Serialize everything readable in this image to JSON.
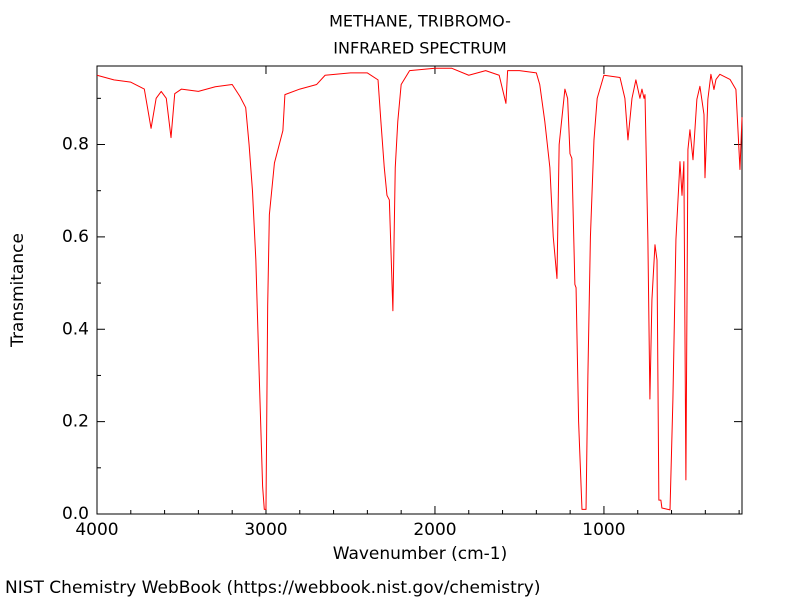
{
  "chart_data": {
    "type": "line",
    "title": "METHANE, TRIBROMO-",
    "subtitle": "INFRARED SPECTRUM",
    "x_label": "Wavenumber (cm-1)",
    "y_label": "Transmitance",
    "source": "NIST Chemistry WebBook (https://webbook.nist.gov/chemistry)",
    "color": "#ff0000",
    "xlim": [
      4000,
      183
    ],
    "ylim": [
      0,
      0.97
    ],
    "xticks": [
      4000,
      3000,
      2000,
      1000
    ],
    "xminorticks": [
      3800,
      3600,
      3400,
      3200,
      2800,
      2600,
      2400,
      2200,
      1800,
      1600,
      1400,
      1200,
      800,
      600,
      400,
      200
    ],
    "yticks": [
      {
        "value": 0,
        "label": "0.0"
      },
      0.2,
      0.4,
      0.6,
      0.8
    ],
    "yminorticks": [
      0.1,
      0.3,
      0.5,
      0.7,
      0.9
    ],
    "x": [
      4000,
      3900,
      3800,
      3720,
      3680,
      3650,
      3620,
      3590,
      3562,
      3540,
      3500,
      3400,
      3300,
      3200,
      3154,
      3120,
      3100,
      3080,
      3060,
      3040,
      3020,
      3010,
      3000,
      2990,
      2980,
      2950,
      2900,
      2888,
      2800,
      2700,
      2650,
      2500,
      2400,
      2337,
      2320,
      2300,
      2284,
      2270,
      2249,
      2235,
      2220,
      2200,
      2150,
      2000,
      1900,
      1800,
      1700,
      1620,
      1580,
      1570,
      1500,
      1400,
      1380,
      1350,
      1320,
      1300,
      1278,
      1265,
      1231,
      1215,
      1201,
      1190,
      1172,
      1165,
      1150,
      1130,
      1106,
      1095,
      1080,
      1059,
      1040,
      1000,
      905,
      876,
      858,
      834,
      811,
      787,
      775,
      763,
      757,
      740,
      728,
      716,
      698,
      686,
      675,
      663,
      657,
      609,
      592,
      574,
      550,
      538,
      527,
      515,
      503,
      491,
      473,
      450,
      432,
      408,
      402,
      385,
      367,
      349,
      337,
      314,
      254,
      219,
      195,
      183
    ],
    "values": [
      0.95,
      0.94,
      0.935,
      0.92,
      0.835,
      0.9,
      0.915,
      0.9,
      0.815,
      0.91,
      0.92,
      0.915,
      0.925,
      0.93,
      0.904,
      0.88,
      0.8,
      0.7,
      0.55,
      0.3,
      0.06,
      0.01,
      0.01,
      0.45,
      0.648,
      0.76,
      0.83,
      0.908,
      0.92,
      0.93,
      0.95,
      0.955,
      0.955,
      0.94,
      0.85,
      0.75,
      0.69,
      0.68,
      0.44,
      0.75,
      0.85,
      0.93,
      0.96,
      0.965,
      0.965,
      0.95,
      0.96,
      0.95,
      0.889,
      0.96,
      0.96,
      0.955,
      0.93,
      0.85,
      0.75,
      0.6,
      0.51,
      0.8,
      0.92,
      0.9,
      0.78,
      0.77,
      0.497,
      0.49,
      0.2,
      0.01,
      0.01,
      0.3,
      0.6,
      0.81,
      0.9,
      0.95,
      0.945,
      0.9,
      0.81,
      0.9,
      0.94,
      0.9,
      0.92,
      0.9,
      0.908,
      0.594,
      0.249,
      0.464,
      0.583,
      0.55,
      0.03,
      0.03,
      0.013,
      0.009,
      0.247,
      0.594,
      0.763,
      0.69,
      0.763,
      0.074,
      0.789,
      0.832,
      0.767,
      0.898,
      0.926,
      0.865,
      0.728,
      0.898,
      0.952,
      0.919,
      0.941,
      0.952,
      0.941,
      0.919,
      0.746,
      0.859
    ]
  }
}
